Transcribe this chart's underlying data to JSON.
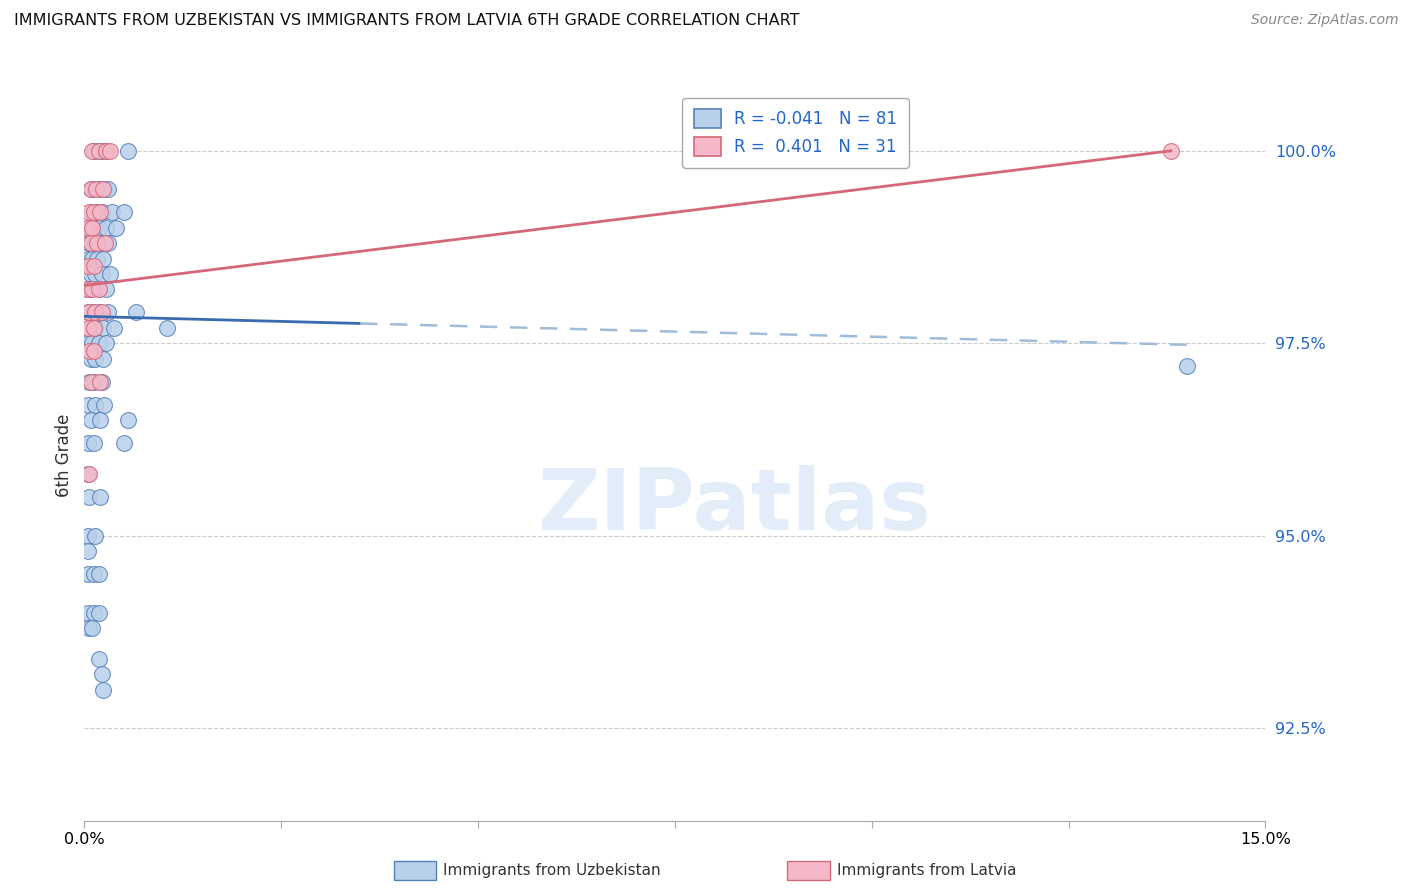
{
  "title": "IMMIGRANTS FROM UZBEKISTAN VS IMMIGRANTS FROM LATVIA 6TH GRADE CORRELATION CHART",
  "source": "Source: ZipAtlas.com",
  "ylabel": "6th Grade",
  "ytick_values": [
    92.5,
    95.0,
    97.5,
    100.0
  ],
  "xmin": 0.0,
  "xmax": 15.0,
  "ymin": 91.3,
  "ymax": 100.8,
  "blue_fill": "#b8d0ea",
  "blue_edge": "#5580b8",
  "pink_fill": "#f4b8c8",
  "pink_edge": "#d46878",
  "blue_line": "#3a6ab0",
  "blue_dash": "#a0bcd8",
  "pink_line": "#d46878",
  "blue_scatter": [
    [
      0.12,
      100.0
    ],
    [
      0.18,
      100.0
    ],
    [
      0.22,
      100.0
    ],
    [
      0.28,
      100.0
    ],
    [
      0.55,
      100.0
    ],
    [
      0.08,
      99.5
    ],
    [
      0.14,
      99.5
    ],
    [
      0.2,
      99.5
    ],
    [
      0.25,
      99.5
    ],
    [
      0.3,
      99.5
    ],
    [
      0.1,
      99.2
    ],
    [
      0.16,
      99.2
    ],
    [
      0.22,
      99.2
    ],
    [
      0.35,
      99.2
    ],
    [
      0.5,
      99.2
    ],
    [
      0.05,
      99.0
    ],
    [
      0.12,
      99.0
    ],
    [
      0.18,
      99.0
    ],
    [
      0.28,
      99.0
    ],
    [
      0.4,
      99.0
    ],
    [
      0.06,
      98.8
    ],
    [
      0.14,
      98.8
    ],
    [
      0.2,
      98.8
    ],
    [
      0.3,
      98.8
    ],
    [
      0.04,
      98.6
    ],
    [
      0.1,
      98.6
    ],
    [
      0.16,
      98.6
    ],
    [
      0.24,
      98.6
    ],
    [
      0.08,
      98.4
    ],
    [
      0.14,
      98.4
    ],
    [
      0.22,
      98.4
    ],
    [
      0.32,
      98.4
    ],
    [
      0.03,
      98.2
    ],
    [
      0.08,
      98.2
    ],
    [
      0.18,
      98.2
    ],
    [
      0.28,
      98.2
    ],
    [
      0.05,
      97.9
    ],
    [
      0.12,
      97.9
    ],
    [
      0.2,
      97.9
    ],
    [
      0.3,
      97.9
    ],
    [
      0.65,
      97.9
    ],
    [
      0.06,
      97.7
    ],
    [
      0.14,
      97.7
    ],
    [
      0.24,
      97.7
    ],
    [
      0.38,
      97.7
    ],
    [
      1.05,
      97.7
    ],
    [
      0.04,
      97.5
    ],
    [
      0.1,
      97.5
    ],
    [
      0.18,
      97.5
    ],
    [
      0.28,
      97.5
    ],
    [
      0.08,
      97.3
    ],
    [
      0.14,
      97.3
    ],
    [
      0.24,
      97.3
    ],
    [
      0.06,
      97.0
    ],
    [
      0.12,
      97.0
    ],
    [
      0.22,
      97.0
    ],
    [
      0.04,
      96.7
    ],
    [
      0.14,
      96.7
    ],
    [
      0.25,
      96.7
    ],
    [
      0.08,
      96.5
    ],
    [
      0.2,
      96.5
    ],
    [
      0.55,
      96.5
    ],
    [
      0.04,
      96.2
    ],
    [
      0.12,
      96.2
    ],
    [
      0.5,
      96.2
    ],
    [
      0.04,
      95.8
    ],
    [
      0.06,
      95.5
    ],
    [
      0.2,
      95.5
    ],
    [
      0.04,
      95.0
    ],
    [
      0.14,
      95.0
    ],
    [
      0.04,
      94.8
    ],
    [
      0.04,
      94.5
    ],
    [
      0.12,
      94.5
    ],
    [
      0.18,
      94.5
    ],
    [
      0.04,
      94.0
    ],
    [
      0.12,
      94.0
    ],
    [
      0.18,
      94.0
    ],
    [
      0.06,
      93.8
    ],
    [
      0.1,
      93.8
    ],
    [
      0.18,
      93.4
    ],
    [
      0.22,
      93.2
    ],
    [
      0.24,
      93.0
    ],
    [
      14.0,
      97.2
    ]
  ],
  "pink_scatter": [
    [
      0.1,
      100.0
    ],
    [
      0.18,
      100.0
    ],
    [
      0.28,
      100.0
    ],
    [
      0.32,
      100.0
    ],
    [
      0.08,
      99.5
    ],
    [
      0.15,
      99.5
    ],
    [
      0.24,
      99.5
    ],
    [
      0.06,
      99.2
    ],
    [
      0.12,
      99.2
    ],
    [
      0.2,
      99.2
    ],
    [
      0.04,
      99.0
    ],
    [
      0.1,
      99.0
    ],
    [
      0.08,
      98.8
    ],
    [
      0.16,
      98.8
    ],
    [
      0.26,
      98.8
    ],
    [
      0.05,
      98.5
    ],
    [
      0.12,
      98.5
    ],
    [
      0.04,
      98.2
    ],
    [
      0.1,
      98.2
    ],
    [
      0.18,
      98.2
    ],
    [
      0.06,
      97.9
    ],
    [
      0.14,
      97.9
    ],
    [
      0.22,
      97.9
    ],
    [
      0.04,
      97.7
    ],
    [
      0.12,
      97.7
    ],
    [
      0.06,
      97.4
    ],
    [
      0.12,
      97.4
    ],
    [
      0.08,
      97.0
    ],
    [
      0.2,
      97.0
    ],
    [
      0.06,
      95.8
    ],
    [
      13.8,
      100.0
    ]
  ],
  "blue_trend_x0": 0.0,
  "blue_trend_y0": 97.85,
  "blue_trend_x1": 14.0,
  "blue_trend_y1": 97.48,
  "blue_solid_end_x": 3.5,
  "pink_trend_x0": 0.0,
  "pink_trend_y0": 98.25,
  "pink_trend_x1": 13.8,
  "pink_trend_y1": 100.0,
  "xtick_positions": [
    0.0,
    2.5,
    5.0,
    7.5,
    10.0,
    12.5,
    15.0
  ],
  "xtick_labels": [
    "0.0%",
    "",
    "",
    "",
    "",
    "",
    "15.0%"
  ]
}
